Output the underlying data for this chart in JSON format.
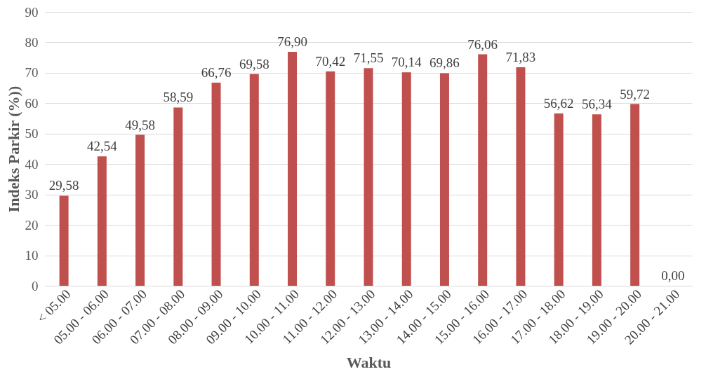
{
  "chart_data": {
    "type": "bar",
    "xlabel": "Waktu",
    "ylabel": "Indeks Parkir (%))",
    "categories": [
      "< 05.00",
      "05.00 - 06.00",
      "06.00 - 07.00",
      "07.00 - 08.00",
      "08.00 - 09.00",
      "09.00 - 10.00",
      "10.00 - 11.00",
      "11.00 - 12.00",
      "12.00 - 13.00",
      "13.00 - 14.00",
      "14.00 - 15.00",
      "15.00 - 16.00",
      "16.00 - 17.00",
      "17.00 - 18.00",
      "18.00 - 19.00",
      "19.00 - 20.00",
      "20.00 - 21.00"
    ],
    "values": [
      29.58,
      42.54,
      49.58,
      58.59,
      66.76,
      69.58,
      76.9,
      70.42,
      71.55,
      70.14,
      69.86,
      76.06,
      71.83,
      56.62,
      56.34,
      59.72,
      0.0
    ],
    "value_labels": [
      "29,58",
      "42,54",
      "49,58",
      "58,59",
      "66,76",
      "69,58",
      "76,90",
      "70,42",
      "71,55",
      "70,14",
      "69,86",
      "76,06",
      "71,83",
      "56,62",
      "56,34",
      "59,72",
      "0,00"
    ],
    "color": "#c0504d",
    "ylim": [
      0,
      90
    ],
    "yticks": [
      0,
      10,
      20,
      30,
      40,
      50,
      60,
      70,
      80,
      90
    ],
    "grid": "y"
  }
}
